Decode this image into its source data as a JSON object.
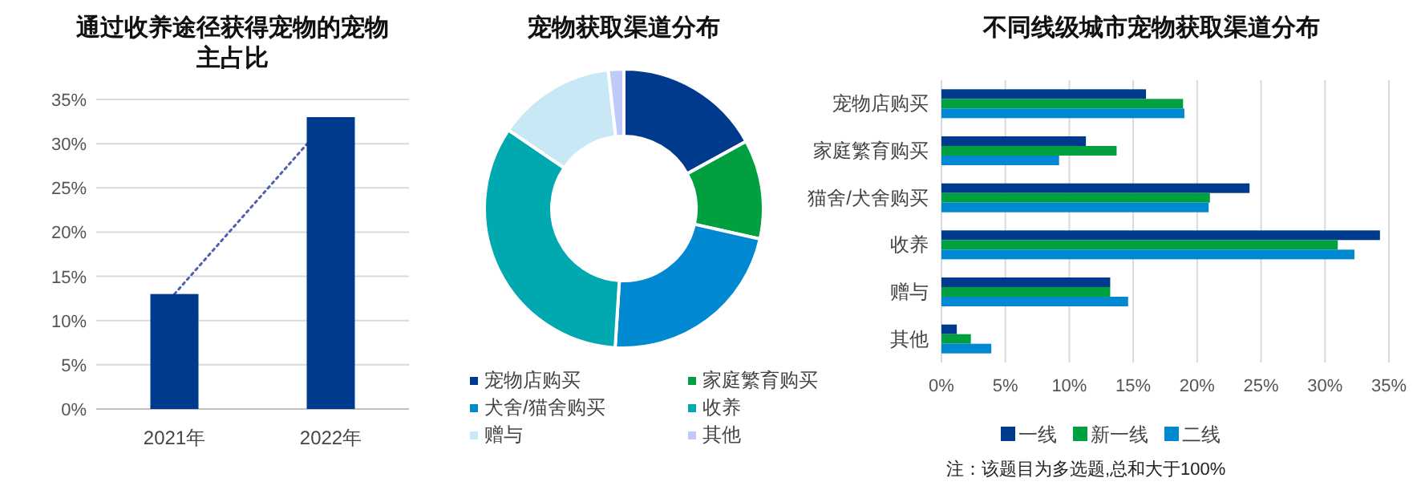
{
  "chart_data": [
    {
      "type": "bar",
      "title": "通过收养途径获得宠物的宠物主占比",
      "categories": [
        "2021年",
        "2022年"
      ],
      "series": [
        {
          "type": "bar",
          "color": "#003a8c",
          "values": [
            13,
            33
          ]
        },
        {
          "type": "line",
          "color": "#5060b0",
          "values": [
            13,
            33
          ],
          "line_style": "dotted"
        }
      ],
      "ylim": [
        0,
        35
      ],
      "yticks": [
        {
          "value": 0,
          "label": "0%"
        },
        {
          "value": 5,
          "label": "5%"
        },
        {
          "value": 10,
          "label": "10%"
        },
        {
          "value": 15,
          "label": "15%"
        },
        {
          "value": 20,
          "label": "20%"
        },
        {
          "value": 25,
          "label": "25%"
        },
        {
          "value": 30,
          "label": "30%"
        },
        {
          "value": 35,
          "label": "35%"
        }
      ],
      "grid": "y"
    },
    {
      "type": "donut",
      "title": "宠物获取渠道分布",
      "categories": [
        "宠物店购买",
        "家庭繁育购买",
        "犬舍/猫舍购买",
        "收养",
        "赠与",
        "其他"
      ],
      "values": [
        17,
        11.5,
        22.5,
        33.5,
        13.7,
        1.8
      ],
      "colors": [
        "#003a8c",
        "#00a040",
        "#0088d1",
        "#00a8b0",
        "#c8e8f6",
        "#c0caf8"
      ],
      "legend": "bottom"
    },
    {
      "type": "bar",
      "orientation": "horizontal",
      "title": "不同线级城市宠物获取渠道分布",
      "categories": [
        "宠物店购买",
        "家庭繁育购买",
        "猫舍/犬舍购买",
        "收养",
        "赠与",
        "其他"
      ],
      "series": [
        {
          "name": "一线",
          "color": "#003a8c",
          "values": [
            16.0,
            11.3,
            24.1,
            34.3,
            13.2,
            1.2
          ]
        },
        {
          "name": "新一线",
          "color": "#00a040",
          "values": [
            18.9,
            13.7,
            21.0,
            31.0,
            13.2,
            2.3
          ]
        },
        {
          "name": "二线",
          "color": "#0088d1",
          "values": [
            19.0,
            9.2,
            20.9,
            32.3,
            14.6,
            3.9
          ]
        }
      ],
      "xlim": [
        0,
        35
      ],
      "xticks": [
        {
          "value": 0,
          "label": "0%"
        },
        {
          "value": 5,
          "label": "5%"
        },
        {
          "value": 10,
          "label": "10%"
        },
        {
          "value": 15,
          "label": "15%"
        },
        {
          "value": 20,
          "label": "20%"
        },
        {
          "value": 25,
          "label": "25%"
        },
        {
          "value": 30,
          "label": "30%"
        },
        {
          "value": 35,
          "label": "35%"
        }
      ],
      "grid": "x",
      "legend": "bottom",
      "annotations": [
        "注：该题目为多选题,总和大于100%"
      ]
    }
  ]
}
